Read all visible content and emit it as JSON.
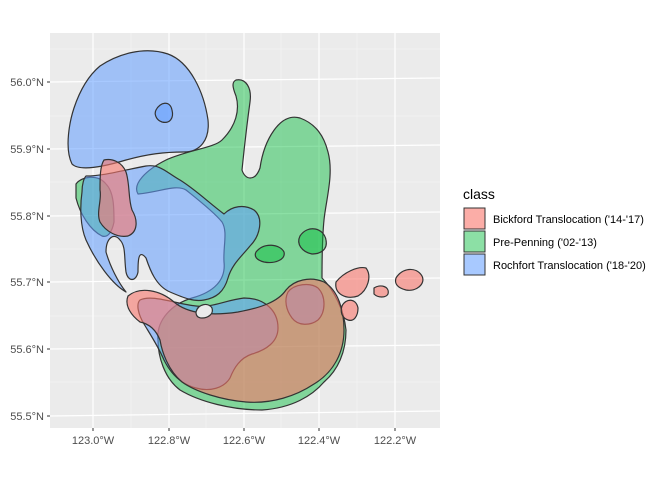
{
  "chart_data": {
    "type": "map",
    "x_ticks": [
      "123.0°W",
      "122.8°W",
      "122.6°W",
      "122.4°W",
      "122.2°W"
    ],
    "y_ticks": [
      "55.5°N",
      "55.6°N",
      "55.7°N",
      "55.8°N",
      "55.9°N",
      "56.0°N"
    ],
    "xlim": [
      -123.08,
      -122.1
    ],
    "ylim": [
      55.48,
      56.08
    ],
    "grid": true,
    "legend": {
      "title": "class",
      "placement": "right",
      "entries": [
        {
          "label": "Bickford Translocation ('14-'17)",
          "color": "#F8766D"
        },
        {
          "label": "Pre-Penning ('02-'13)",
          "color": "#00BA38"
        },
        {
          "label": "Rochfort Translocation ('18-'20)",
          "color": "#619CFF"
        }
      ]
    }
  }
}
